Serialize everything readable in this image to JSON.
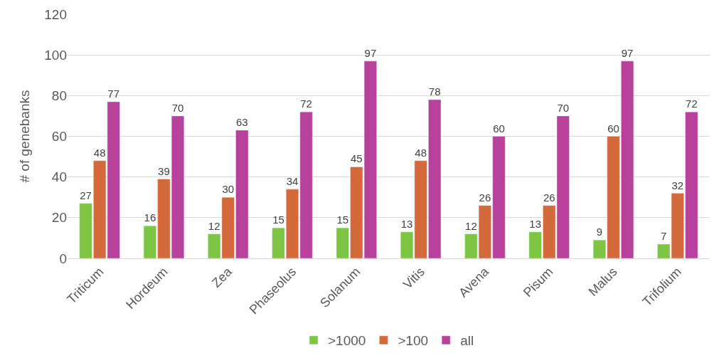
{
  "chart_data": {
    "type": "bar",
    "ylabel": "# of genebanks",
    "categories": [
      "Triticum",
      "Hordeum",
      "Zea",
      "Phaseolus",
      "Solanum",
      "Vitis",
      "Avena",
      "Pisum",
      "Malus",
      "Trifolium"
    ],
    "series": [
      {
        "name": ">1000",
        "color": "#7ec544",
        "values": [
          27,
          16,
          12,
          15,
          15,
          13,
          12,
          13,
          9,
          7
        ]
      },
      {
        "name": ">100",
        "color": "#d4693c",
        "values": [
          48,
          39,
          30,
          34,
          45,
          48,
          26,
          26,
          60,
          32
        ]
      },
      {
        "name": "all",
        "color": "#b8419c",
        "values": [
          77,
          70,
          63,
          72,
          97,
          78,
          60,
          70,
          97,
          72
        ]
      }
    ],
    "ylim": [
      0,
      120
    ],
    "yticks": [
      0,
      20,
      40,
      60,
      80,
      100,
      120
    ],
    "grid": "y",
    "legend": "bottom",
    "data_labels": true
  }
}
